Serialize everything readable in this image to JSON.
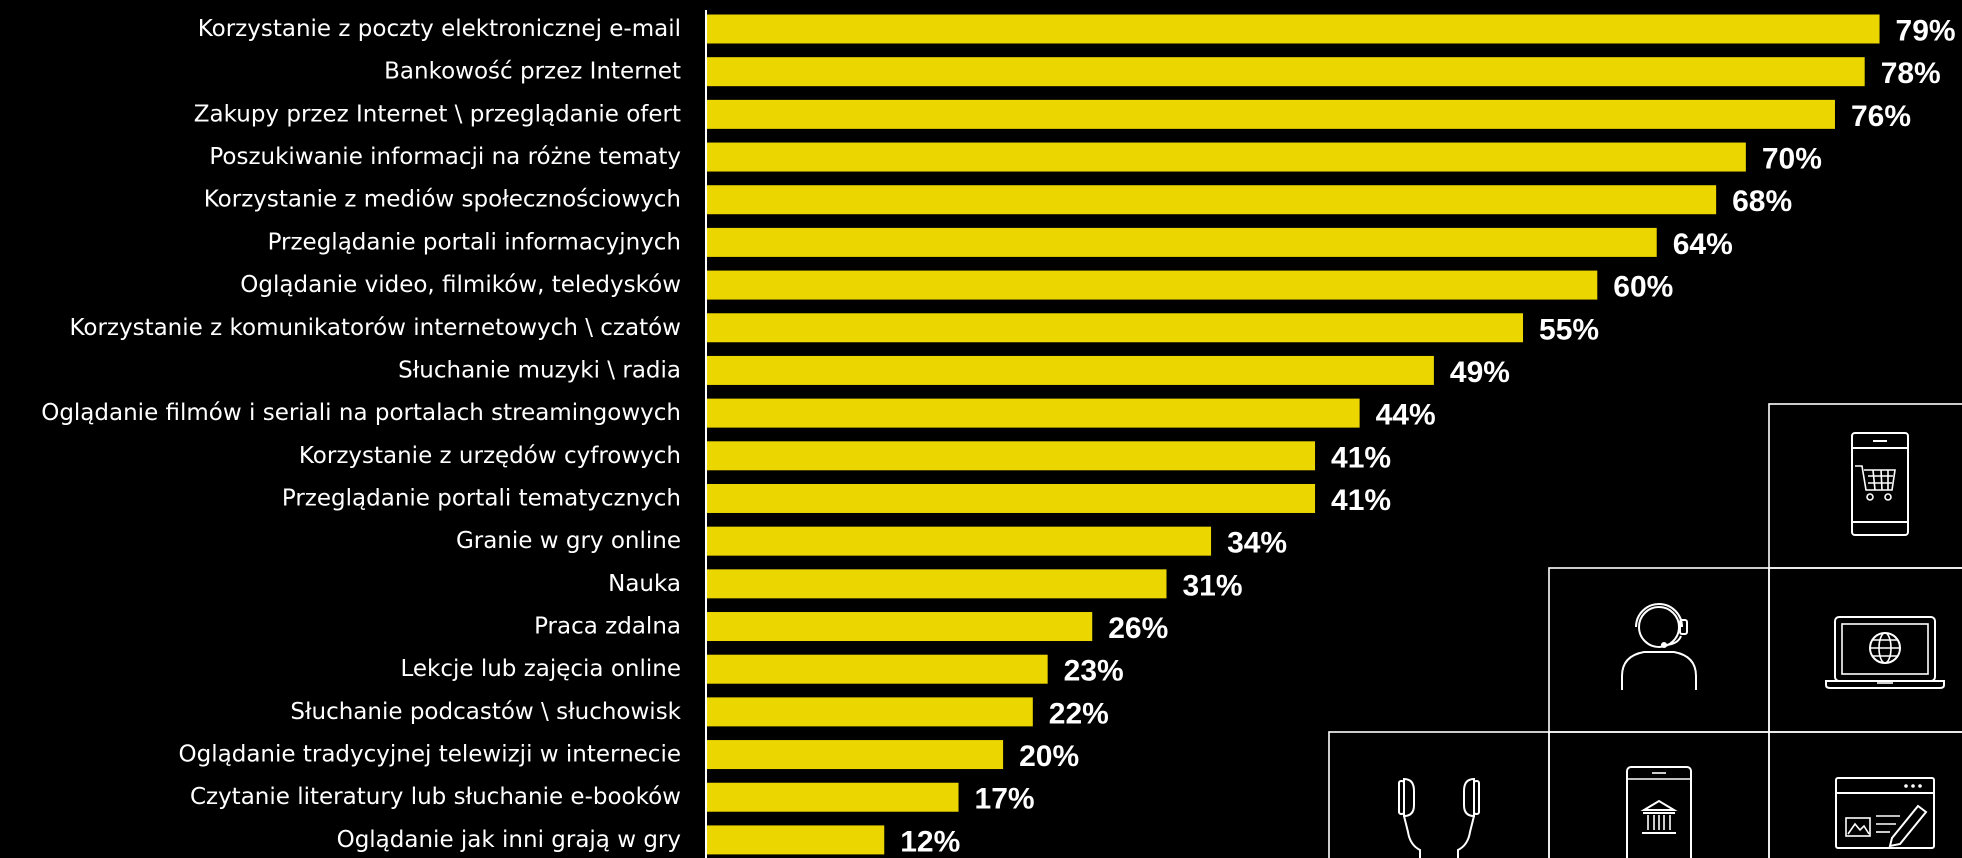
{
  "colors": {
    "background": "#000000",
    "bar": "#EBD600",
    "text": "#FFFFFF"
  },
  "icons": [
    "smartphone-cart-icon",
    "headset-person-icon",
    "laptop-globe-icon",
    "earphones-icon",
    "tablet-bank-icon",
    "browser-edit-icon"
  ],
  "chart_data": {
    "type": "bar",
    "orientation": "horizontal",
    "value_suffix": "%",
    "xlim": [
      0,
      80
    ],
    "grid": false,
    "categories": [
      "Korzystanie z poczty elektronicznej e-mail",
      "Bankowość przez Internet",
      "Zakupy przez Internet \\ przeglądanie ofert",
      "Poszukiwanie informacji na różne tematy",
      "Korzystanie z mediów społecznościowych",
      "Przeglądanie portali informacyjnych",
      "Oglądanie video, filmików, teledysków",
      "Korzystanie z komunikatorów internetowych \\ czatów",
      "Słuchanie muzyki \\ radia",
      "Oglądanie filmów i seriali na portalach streamingowych",
      "Korzystanie z urzędów cyfrowych",
      "Przeglądanie portali tematycznych",
      "Granie w gry online",
      "Nauka",
      "Praca zdalna",
      "Lekcje lub zajęcia online",
      "Słuchanie podcastów \\ słuchowisk",
      "Oglądanie tradycyjnej telewizji w internecie",
      "Czytanie literatury lub słuchanie e-booków",
      "Oglądanie jak inni grają w gry"
    ],
    "values": [
      79,
      78,
      76,
      70,
      68,
      64,
      60,
      55,
      49,
      44,
      41,
      41,
      34,
      31,
      26,
      23,
      22,
      20,
      17,
      12
    ],
    "value_labels": [
      "79%",
      "78%",
      "76%",
      "70%",
      "68%",
      "64%",
      "60%",
      "55%",
      "49%",
      "44%",
      "41%",
      "41%",
      "34%",
      "31%",
      "26%",
      "23%",
      "22%",
      "20%",
      "17%",
      "12%"
    ]
  }
}
